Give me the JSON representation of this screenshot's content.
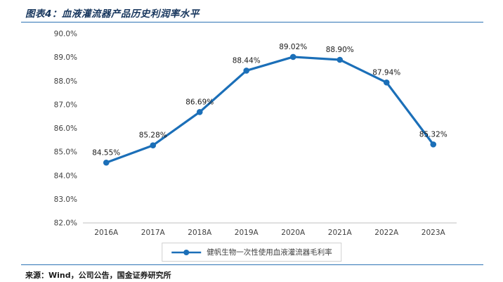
{
  "header": {
    "title": "图表4：血液灌流器产品历史利润率水平"
  },
  "footer": {
    "source": "来源：Wind，公司公告，国金证券研究所"
  },
  "colors": {
    "line": "#1B6FB8",
    "title": "#17365D",
    "divider": "#2E74B5",
    "axis_line": "#BFBFBF",
    "tick_text": "#404040",
    "data_label_text": "#1a1a1a"
  },
  "chart_data": {
    "type": "line",
    "title": "",
    "xlabel": "",
    "ylabel": "",
    "categories": [
      "2016A",
      "2017A",
      "2018A",
      "2019A",
      "2020A",
      "2021A",
      "2022A",
      "2023A"
    ],
    "series": [
      {
        "name": "健帆生物一次性使用血液灌流器毛利率",
        "values": [
          84.55,
          85.28,
          86.69,
          88.44,
          89.02,
          88.9,
          87.94,
          85.32
        ]
      }
    ],
    "data_labels": [
      "84.55%",
      "85.28%",
      "86.69%",
      "88.44%",
      "89.02%",
      "88.90%",
      "87.94%",
      "85.32%"
    ],
    "ylim": [
      82,
      90
    ],
    "y_ticks": [
      "90.0%",
      "89.0%",
      "88.0%",
      "87.0%",
      "86.0%",
      "85.0%",
      "84.0%",
      "83.0%",
      "82.0%"
    ],
    "grid": false,
    "legend_position": "bottom"
  }
}
